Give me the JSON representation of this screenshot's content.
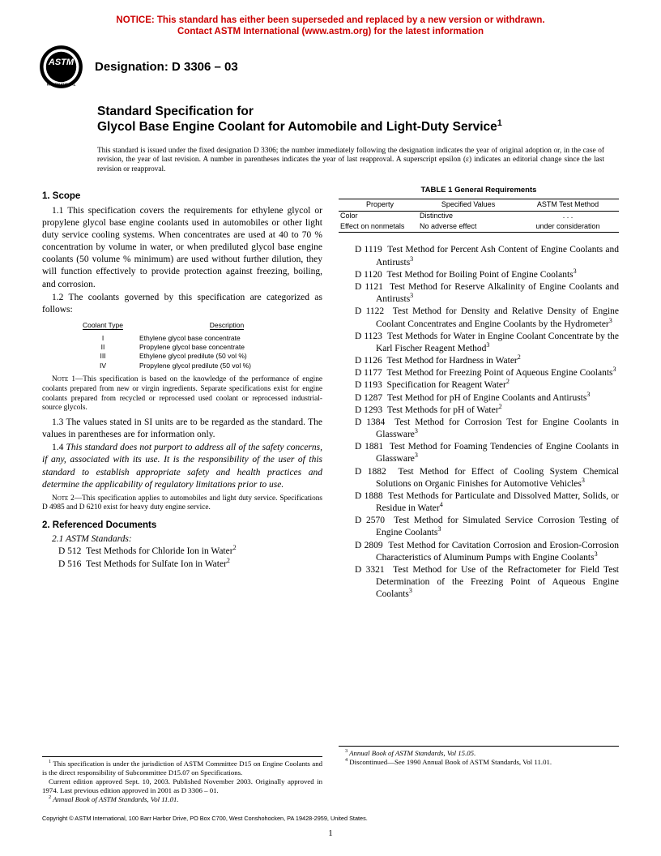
{
  "notice": {
    "line1": "NOTICE: This standard has either been superseded and replaced by a new version or withdrawn.",
    "line2": "Contact ASTM International (www.astm.org) for the latest information"
  },
  "designation": "Designation: D 3306 – 03",
  "title": {
    "pre": "Standard Specification for",
    "main": "Glycol Base Engine Coolant for Automobile and Light-Duty Service",
    "sup": "1"
  },
  "issuance": "This standard is issued under the fixed designation D 3306; the number immediately following the designation indicates the year of original adoption or, in the case of revision, the year of last revision. A number in parentheses indicates the year of last reapproval. A superscript epsilon (ε) indicates an editorial change since the last revision or reapproval.",
  "scope": {
    "head": "1. Scope",
    "p1": "1.1 This specification covers the requirements for ethylene glycol or propylene glycol base engine coolants used in automobiles or other light duty service cooling systems. When concentrates are used at 40 to 70 % concentration by volume in water, or when prediluted glycol base engine coolants (50 volume % minimum) are used without further dilution, they will function effectively to provide protection against freezing, boiling, and corrosion.",
    "p2": "1.2 The coolants governed by this specification are categorized as follows:",
    "ct_head1": "Coolant Type",
    "ct_head2": "Description",
    "ct_rows": [
      {
        "t": "I",
        "d": "Ethylene glycol base concentrate"
      },
      {
        "t": "II",
        "d": "Propylene glycol base concentrate"
      },
      {
        "t": "III",
        "d": "Ethylene glycol predilute (50 vol %)"
      },
      {
        "t": "IV",
        "d": "Propylene glycol predilute (50 vol %)"
      }
    ],
    "note1": " 1—This specification is based on the knowledge of the performance of engine coolants prepared from new or virgin ingredients. Separate specifications exist for engine coolants prepared from recycled or reprocessed used coolant or reprocessed industrial-source glycols.",
    "p3": "1.3 The values stated in SI units are to be regarded as the standard. The values in parentheses are for information only.",
    "p4": "1.4 This standard does not purport to address all of the safety concerns, if any, associated with its use. It is the responsibility of the user of this standard to establish appropriate safety and health practices and determine the applicability of regulatory limitations prior to use.",
    "note2": " 2—This specification applies to automobiles and light duty service. Specifications D 4985 and D 6210 exist for heavy duty engine service."
  },
  "refdocs": {
    "head": "2. Referenced Documents",
    "sub": "2.1 ASTM Standards:",
    "left": [
      {
        "n": "D 512",
        "t": "Test Methods for Chloride Ion in Water",
        "s": "2"
      },
      {
        "n": "D 516",
        "t": "Test Methods for Sulfate Ion in Water",
        "s": "2"
      }
    ],
    "right": [
      {
        "n": "D 1119",
        "t": "Test Method for Percent Ash Content of Engine Coolants and Antirusts",
        "s": "3"
      },
      {
        "n": "D 1120",
        "t": "Test Method for Boiling Point of Engine Coolants",
        "s": "3"
      },
      {
        "n": "D 1121",
        "t": "Test Method for Reserve Alkalinity of Engine Coolants and Antirusts",
        "s": "3"
      },
      {
        "n": "D 1122",
        "t": "Test Method for Density and Relative Density of Engine Coolant Concentrates and Engine Coolants by the Hydrometer",
        "s": "3"
      },
      {
        "n": "D 1123",
        "t": "Test Methods for Water in Engine Coolant Concentrate by the Karl Fischer Reagent Method",
        "s": "3"
      },
      {
        "n": "D 1126",
        "t": "Test Method for Hardness in Water",
        "s": "2"
      },
      {
        "n": "D 1177",
        "t": "Test Method for Freezing Point of Aqueous Engine Coolants",
        "s": "3"
      },
      {
        "n": "D 1193",
        "t": "Specification for Reagent Water",
        "s": "2"
      },
      {
        "n": "D 1287",
        "t": "Test Method for pH of Engine Coolants and Antirusts",
        "s": "3"
      },
      {
        "n": "D 1293",
        "t": "Test Methods for pH of Water",
        "s": "2"
      },
      {
        "n": "D 1384",
        "t": "Test Method for Corrosion Test for Engine Coolants in Glassware",
        "s": "3"
      },
      {
        "n": "D 1881",
        "t": "Test Method for Foaming Tendencies of Engine Coolants in Glassware",
        "s": "3"
      },
      {
        "n": "D 1882",
        "t": "Test Method for Effect of Cooling System Chemical Solutions on Organic Finishes for Automotive Vehicles",
        "s": "3"
      },
      {
        "n": "D 1888",
        "t": "Test Methods for Particulate and Dissolved Matter, Solids, or Residue in Water",
        "s": "4"
      },
      {
        "n": "D 2570",
        "t": "Test Method for Simulated Service Corrosion Testing of Engine Coolants",
        "s": "3"
      },
      {
        "n": "D 2809",
        "t": "Test Method for Cavitation Corrosion and Erosion-Corrosion Characteristics of Aluminum Pumps with Engine Coolants",
        "s": "3"
      },
      {
        "n": "D 3321",
        "t": "Test Method for Use of the Refractometer for Field Test Determination of the Freezing Point of Aqueous Engine Coolants",
        "s": "3"
      }
    ]
  },
  "table1": {
    "title": "TABLE 1  General Requirements",
    "h1": "Property",
    "h2": "Specified Values",
    "h3": "ASTM Test Method",
    "rows": [
      {
        "c1": "Color",
        "c2": "Distinctive",
        "c3": ". . ."
      },
      {
        "c1": "Effect on nonmetals",
        "c2": "No adverse effect",
        "c3": "under consideration"
      }
    ]
  },
  "footnotes": {
    "f1a": " This specification is under the jurisdiction of ASTM Committee D15 on Engine Coolants and is the direct responsibility of Subcommittee D15.07 on Specifications.",
    "f1b": "Current edition approved Sept. 10, 2003. Published November 2003. Originally approved in 1974. Last previous edition approved in 2001 as D 3306 – 01.",
    "f2": " Annual Book of ASTM Standards, Vol 11.01.",
    "f3": " Annual Book of ASTM Standards, Vol 15.05.",
    "f4": " Discontinued—See 1990 Annual Book of ASTM Standards, Vol 11.01."
  },
  "copyright": "Copyright © ASTM International, 100 Barr Harbor Drive, PO Box C700, West Conshohocken, PA 19428-2959, United States.",
  "page": "1",
  "logo_label": "ASTM INTERNATIONAL"
}
